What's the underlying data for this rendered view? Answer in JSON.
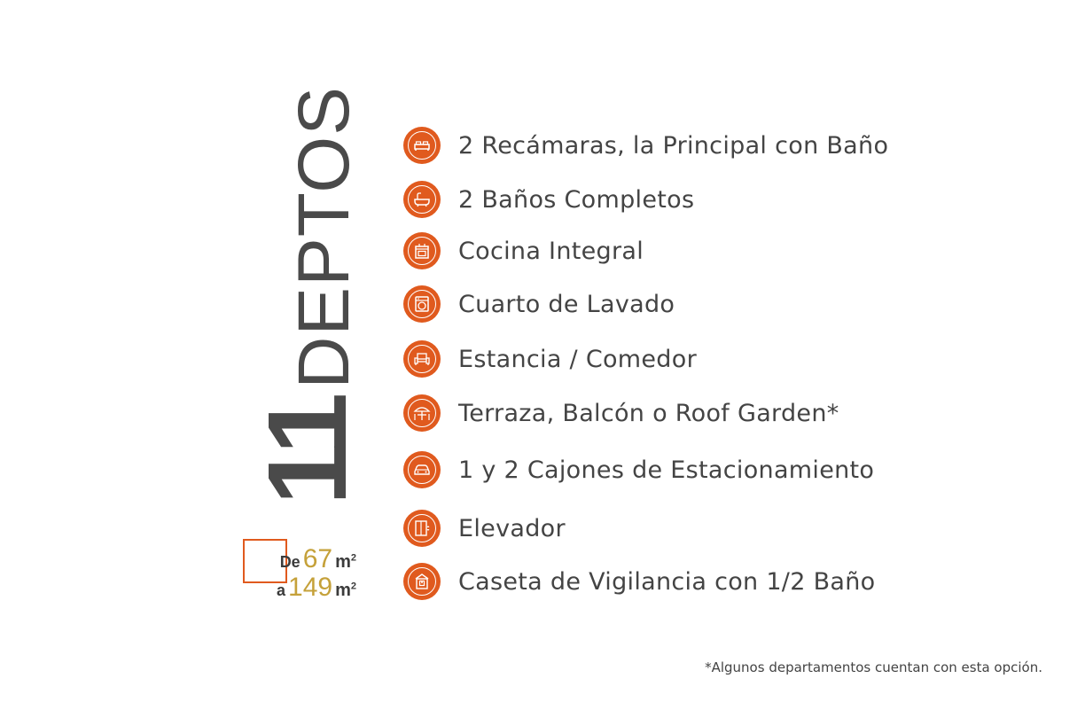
{
  "title": {
    "number": "11",
    "word": "DEPTOS"
  },
  "area": {
    "from_prefix": "De",
    "from_value": "67",
    "to_prefix": "a",
    "to_value": "149",
    "unit": "m",
    "unit_sup": "2"
  },
  "amenities": [
    {
      "icon": "bed-icon",
      "label": "2 Recámaras, la Principal con Baño"
    },
    {
      "icon": "bathtub-icon",
      "label": "2 Baños Completos"
    },
    {
      "icon": "stove-icon",
      "label": "Cocina Integral"
    },
    {
      "icon": "washing-machine-icon",
      "label": "Cuarto de Lavado"
    },
    {
      "icon": "sofa-icon",
      "label": "Estancia / Comedor"
    },
    {
      "icon": "umbrella-table-icon",
      "label": "Terraza, Balcón o Roof Garden*"
    },
    {
      "icon": "car-icon",
      "label": "1 y 2 Cajones de Estacionamiento"
    },
    {
      "icon": "elevator-icon",
      "label": "Elevador"
    },
    {
      "icon": "guard-booth-icon",
      "label": "Caseta de Vigilancia con 1/2 Baño"
    }
  ],
  "footnote": "*Algunos departamentos cuentan con esta opción.",
  "colors": {
    "accent": "#e05a1e",
    "gold": "#c5a13a",
    "text": "#444444"
  }
}
